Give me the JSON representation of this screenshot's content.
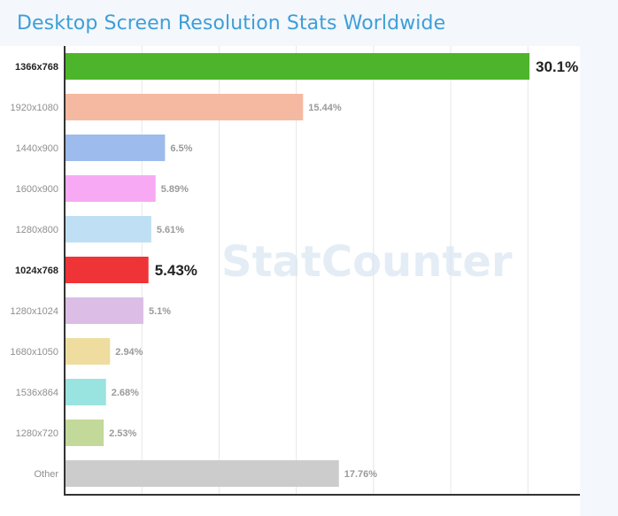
{
  "chart_data": {
    "type": "bar",
    "orientation": "horizontal",
    "title": "Desktop Screen Resolution Stats Worldwide",
    "watermark": "StatCounter",
    "categories": [
      "1366x768",
      "1920x1080",
      "1440x900",
      "1600x900",
      "1280x800",
      "1024x768",
      "1280x1024",
      "1680x1050",
      "1536x864",
      "1280x720",
      "Other"
    ],
    "values": [
      30.1,
      15.44,
      6.5,
      5.89,
      5.61,
      5.43,
      5.1,
      2.94,
      2.68,
      2.53,
      17.76
    ],
    "value_labels": [
      "30.1%",
      "15.44%",
      "6.5%",
      "5.89%",
      "5.61%",
      "5.43%",
      "5.1%",
      "2.94%",
      "2.68%",
      "2.53%",
      "17.76%"
    ],
    "highlighted": [
      true,
      false,
      false,
      false,
      false,
      true,
      false,
      false,
      false,
      false,
      false
    ],
    "colors": [
      "#4db52b",
      "#f5b9a1",
      "#9dbbec",
      "#f7aaf3",
      "#bfe0f4",
      "#ef3438",
      "#dbbde6",
      "#eedd9f",
      "#99e3e0",
      "#c2d99a",
      "#cccccc"
    ],
    "xlim": [
      0,
      32
    ],
    "grid": true,
    "legend": "none"
  }
}
